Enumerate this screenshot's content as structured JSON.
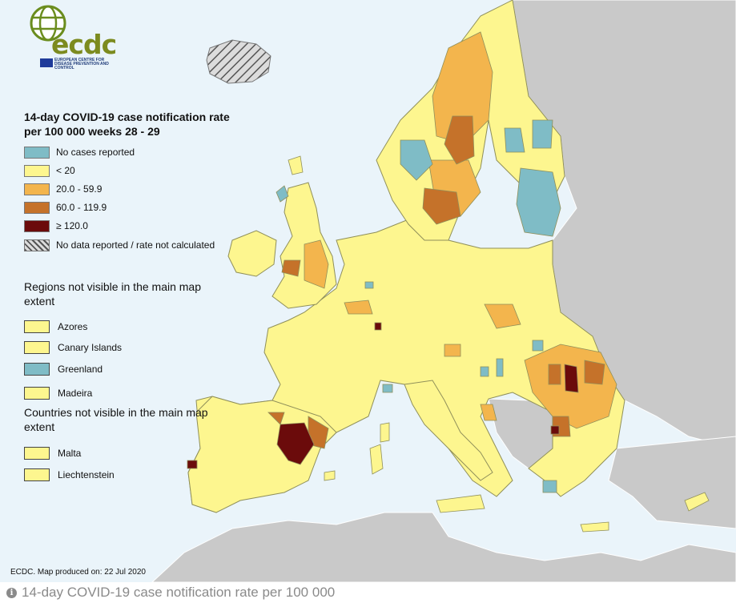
{
  "logo": {
    "text": "ecdc",
    "subtitle": "EUROPEAN CENTRE FOR DISEASE PREVENTION AND CONTROL"
  },
  "legend": {
    "title": "14-day COVID-19 case notification rate per 100 000 weeks 28 - 29",
    "items": [
      {
        "label": "No cases reported",
        "color": "#7fbcc6"
      },
      {
        "label": "< 20",
        "color": "#fdf68f"
      },
      {
        "label": "20.0 - 59.9",
        "color": "#f3b54d"
      },
      {
        "label": "60.0 - 119.9",
        "color": "#c5722a"
      },
      {
        "label": "≥ 120.0",
        "color": "#6b0b0b"
      },
      {
        "label": "No data reported / rate not calculated",
        "color": "hatched"
      }
    ]
  },
  "regions_not_visible": {
    "title": "Regions not visible in the main map extent",
    "items": [
      {
        "label": "Azores",
        "color": "#fdf68f"
      },
      {
        "label": "Canary Islands",
        "color": "#fdf68f"
      },
      {
        "label": "Greenland",
        "color": "#7fbcc6"
      },
      {
        "label": "Madeira",
        "color": "#fdf68f"
      }
    ]
  },
  "countries_not_visible": {
    "title": "Countries not visible in the main map extent",
    "items": [
      {
        "label": "Malta",
        "color": "#fdf68f"
      },
      {
        "label": "Liechtenstein",
        "color": "#fdf68f"
      }
    ]
  },
  "credit": "ECDC. Map produced on: 22 Jul 2020",
  "caption": "14-day COVID-19 case notification rate per 100 000",
  "colors": {
    "sea": "#eaf4fa",
    "non_eu_land": "#c9c9c9",
    "border": "#8f8f5a"
  }
}
